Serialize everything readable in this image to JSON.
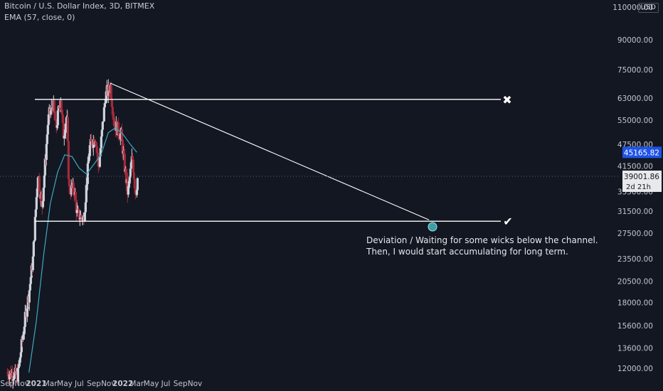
{
  "legend": {
    "symbol": "Bitcoin / U.S. Dollar Index, 3D, BITMEX",
    "indicator": "EMA (57, close, 0)"
  },
  "currency": "USD",
  "annotation": {
    "line1": "Deviation / Waiting for some wicks below the channel.",
    "line2": "Then, I would start accumulating for long term."
  },
  "colors": {
    "background": "#131722",
    "up": "#cfd3dc",
    "down": "#a52a3a",
    "ema": "#3fa9c0",
    "channel": "#ffffff",
    "price_label": "#1e53e5",
    "marker": "#3b9ea8"
  },
  "chart_data": {
    "type": "candlestick",
    "y_scale": "log",
    "ylim": [
      11500,
      115000
    ],
    "y_ticks": [
      "12000.00",
      "13600.00",
      "15600.00",
      "18000.00",
      "20500.00",
      "23500.00",
      "27500.00",
      "31500.00",
      "35500.00",
      "41500.00",
      "47500.00",
      "55000.00",
      "63000.00",
      "75000.00",
      "90000.00",
      "110000.00"
    ],
    "x_ticks": [
      "Sep",
      "Nov",
      "2021",
      "Mar",
      "May",
      "Jul",
      "Sep",
      "Nov",
      "2022",
      "Mar",
      "May",
      "Jul",
      "Sep",
      "Nov"
    ],
    "price_labels": {
      "ema_value": "45165.82",
      "last_price": "39001.86",
      "countdown": "2d 21h"
    },
    "channel": {
      "top": 62500,
      "bottom": 29600
    },
    "markers": {
      "top_right": "✖",
      "bottom_right": "✔"
    },
    "trend_from_high": 69000,
    "target_price": 29600,
    "anchor_points": [
      [
        "2020-09-01",
        11700
      ],
      [
        "2020-10-15",
        11500
      ],
      [
        "2020-11-10",
        15500
      ],
      [
        "2020-12-01",
        19000
      ],
      [
        "2020-12-18",
        23500
      ],
      [
        "2021-01-08",
        40000
      ],
      [
        "2021-01-25",
        32000
      ],
      [
        "2021-02-20",
        55000
      ],
      [
        "2021-03-13",
        61000
      ],
      [
        "2021-03-25",
        52000
      ],
      [
        "2021-04-14",
        63500
      ],
      [
        "2021-04-25",
        50000
      ],
      [
        "2021-05-10",
        57000
      ],
      [
        "2021-05-19",
        36000
      ],
      [
        "2021-06-10",
        36000
      ],
      [
        "2021-06-22",
        31000
      ],
      [
        "2021-07-20",
        30000
      ],
      [
        "2021-08-14",
        46500
      ],
      [
        "2021-09-07",
        50000
      ],
      [
        "2021-09-21",
        41000
      ],
      [
        "2021-10-20",
        64000
      ],
      [
        "2021-11-10",
        67500
      ],
      [
        "2021-11-26",
        54000
      ],
      [
        "2021-12-25",
        50000
      ],
      [
        "2022-01-22",
        35000
      ],
      [
        "2022-02-10",
        44000
      ],
      [
        "2022-02-24",
        35000
      ],
      [
        "2022-03-05",
        39000
      ]
    ],
    "ema_points": [
      [
        "2020-12-01",
        11700
      ],
      [
        "2021-01-01",
        16000
      ],
      [
        "2021-02-01",
        24000
      ],
      [
        "2021-03-01",
        33000
      ],
      [
        "2021-04-01",
        40000
      ],
      [
        "2021-05-01",
        44500
      ],
      [
        "2021-06-01",
        44000
      ],
      [
        "2021-07-01",
        41000
      ],
      [
        "2021-08-01",
        39500
      ],
      [
        "2021-09-01",
        42000
      ],
      [
        "2021-10-01",
        44500
      ],
      [
        "2021-11-01",
        51000
      ],
      [
        "2021-12-01",
        52500
      ],
      [
        "2022-01-01",
        50500
      ],
      [
        "2022-02-01",
        47500
      ],
      [
        "2022-03-01",
        45165
      ]
    ]
  }
}
